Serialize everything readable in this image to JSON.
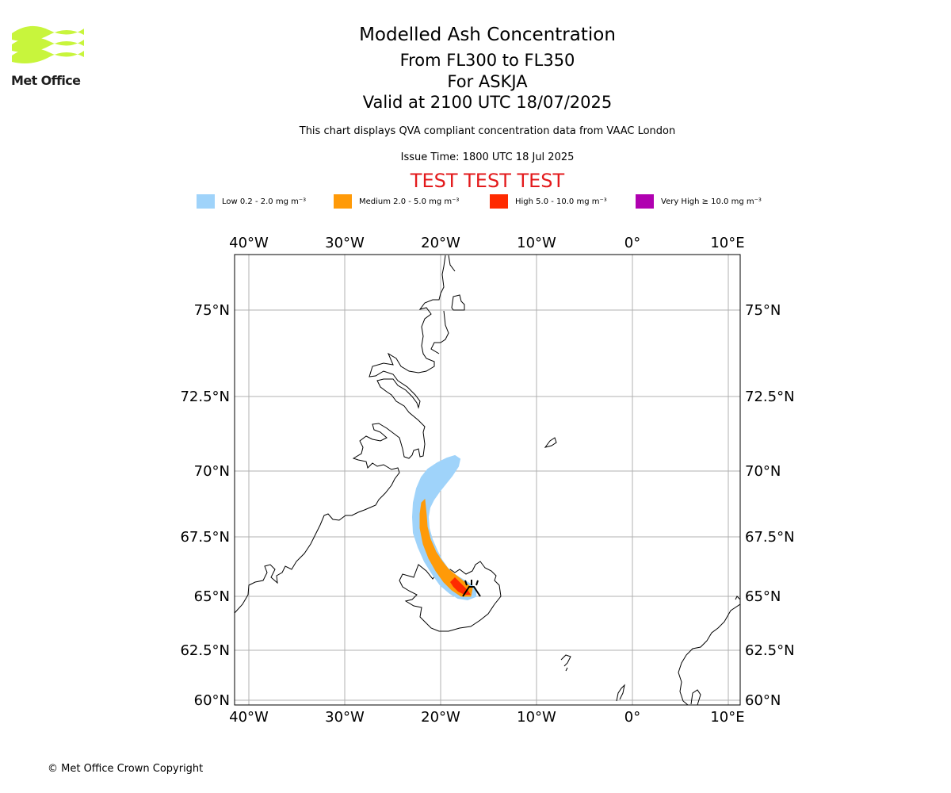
{
  "branding": {
    "logo_text": "Met Office",
    "logo_color": "#c8f53c"
  },
  "header": {
    "title": "Modelled Ash Concentration",
    "flight_levels": "From FL300 to FL350",
    "volcano": "For ASKJA",
    "valid_time": "Valid at 2100 UTC 18/07/2025",
    "description": "This chart displays QVA compliant concentration data from VAAC London",
    "issue_time": "Issue Time: 1800 UTC 18 Jul 2025",
    "test_banner": "TEST TEST TEST",
    "test_banner_color": "#e31a1c"
  },
  "legend": [
    {
      "label": "Low 0.2 - 2.0 mg m⁻³",
      "color": "#9fd3fa"
    },
    {
      "label": "Medium 2.0 - 5.0 mg m⁻³",
      "color": "#ff9a08"
    },
    {
      "label": "High 5.0 - 10.0 mg m⁻³",
      "color": "#ff2a00"
    },
    {
      "label": "Very High  ≥  10.0 mg m⁻³",
      "color": "#b000b0"
    }
  ],
  "map": {
    "lon_ticks": [
      "40°W",
      "30°W",
      "20°W",
      "10°W",
      "0°",
      "10°E"
    ],
    "lat_ticks": [
      "75°N",
      "72.5°N",
      "70°N",
      "67.5°N",
      "65°N",
      "62.5°N",
      "60°N"
    ],
    "volcano_icon": "volcano-icon"
  },
  "footer": {
    "copyright": "© Met Office Crown Copyright"
  }
}
